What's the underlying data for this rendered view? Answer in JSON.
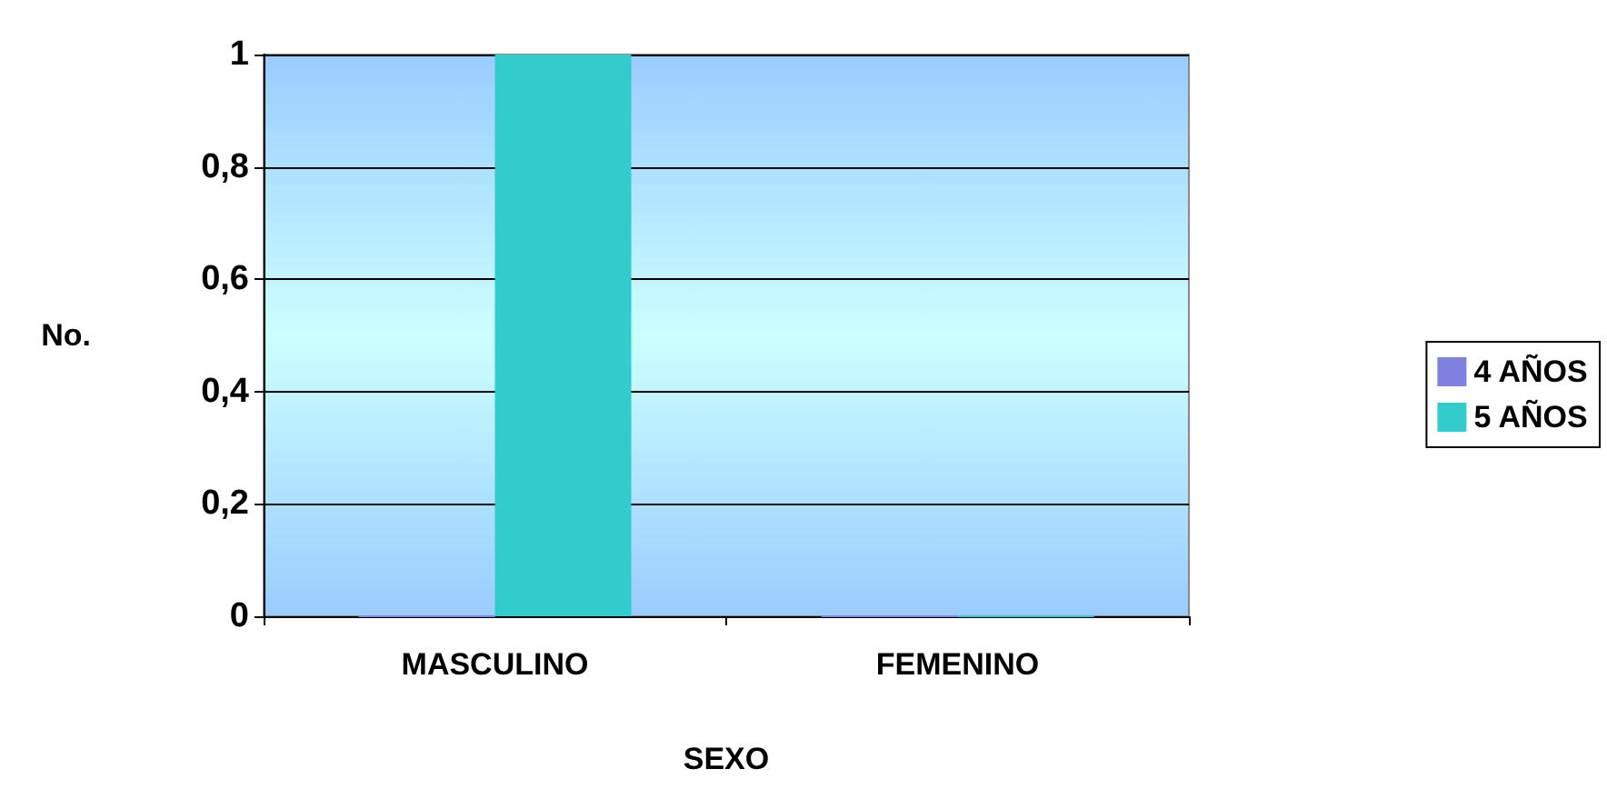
{
  "chart_data": {
    "type": "bar",
    "xlabel": "SEXO",
    "ylabel": "No.",
    "categories": [
      "MASCULINO",
      "FEMENINO"
    ],
    "series": [
      {
        "name": "4 AÑOS",
        "color": "#8080e0",
        "values": [
          0,
          0
        ]
      },
      {
        "name": "5 AÑOS",
        "color": "#33cccc",
        "values": [
          1,
          0
        ]
      }
    ],
    "ylim": [
      0,
      1
    ],
    "yticks": [
      {
        "value": 0,
        "label": "0"
      },
      {
        "value": 0.2,
        "label": "0,2"
      },
      {
        "value": 0.4,
        "label": "0,4"
      },
      {
        "value": 0.6,
        "label": "0,6"
      },
      {
        "value": 0.8,
        "label": "0,8"
      },
      {
        "value": 1,
        "label": "1"
      }
    ],
    "grid": "y",
    "legend": "right"
  }
}
